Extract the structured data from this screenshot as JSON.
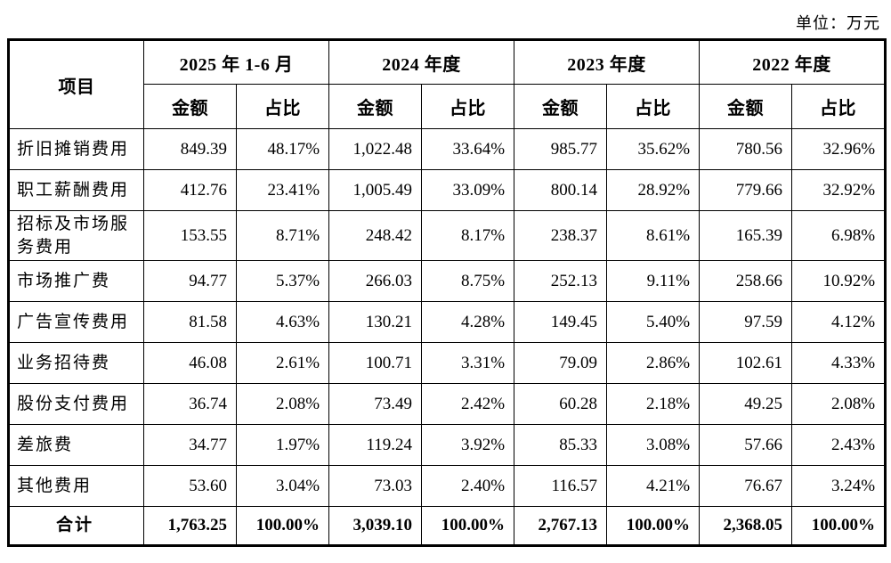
{
  "meta": {
    "unit_label": "单位：万元"
  },
  "table": {
    "item_header": "项目",
    "period_headers": [
      "2025 年 1-6 月",
      "2024 年度",
      "2023 年度",
      "2022 年度"
    ],
    "sub_headers": {
      "amount": "金额",
      "ratio": "占比"
    },
    "rows": [
      {
        "label": "折旧摊销费用",
        "values": [
          "849.39",
          "48.17%",
          "1,022.48",
          "33.64%",
          "985.77",
          "35.62%",
          "780.56",
          "32.96%"
        ]
      },
      {
        "label": "职工薪酬费用",
        "values": [
          "412.76",
          "23.41%",
          "1,005.49",
          "33.09%",
          "800.14",
          "28.92%",
          "779.66",
          "32.92%"
        ]
      },
      {
        "label": "招标及市场服务费用",
        "values": [
          "153.55",
          "8.71%",
          "248.42",
          "8.17%",
          "238.37",
          "8.61%",
          "165.39",
          "6.98%"
        ]
      },
      {
        "label": "市场推广费",
        "values": [
          "94.77",
          "5.37%",
          "266.03",
          "8.75%",
          "252.13",
          "9.11%",
          "258.66",
          "10.92%"
        ]
      },
      {
        "label": "广告宣传费用",
        "values": [
          "81.58",
          "4.63%",
          "130.21",
          "4.28%",
          "149.45",
          "5.40%",
          "97.59",
          "4.12%"
        ]
      },
      {
        "label": "业务招待费",
        "values": [
          "46.08",
          "2.61%",
          "100.71",
          "3.31%",
          "79.09",
          "2.86%",
          "102.61",
          "4.33%"
        ]
      },
      {
        "label": "股份支付费用",
        "values": [
          "36.74",
          "2.08%",
          "73.49",
          "2.42%",
          "60.28",
          "2.18%",
          "49.25",
          "2.08%"
        ]
      },
      {
        "label": "差旅费",
        "values": [
          "34.77",
          "1.97%",
          "119.24",
          "3.92%",
          "85.33",
          "3.08%",
          "57.66",
          "2.43%"
        ]
      },
      {
        "label": "其他费用",
        "values": [
          "53.60",
          "3.04%",
          "73.03",
          "2.40%",
          "116.57",
          "4.21%",
          "76.67",
          "3.24%"
        ]
      }
    ],
    "total_row": {
      "label": "合计",
      "values": [
        "1,763.25",
        "100.00%",
        "3,039.10",
        "100.00%",
        "2,767.13",
        "100.00%",
        "2,368.05",
        "100.00%"
      ]
    }
  }
}
